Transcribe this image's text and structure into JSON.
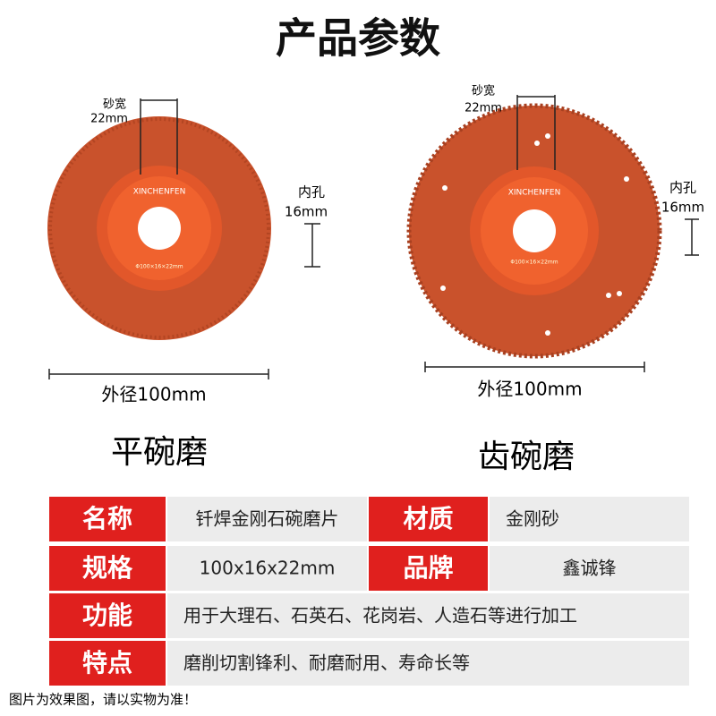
{
  "title": "产品参数",
  "discs": [
    {
      "width_label": "砂宽",
      "width_value": "22mm",
      "hole_label": "内孔",
      "hole_value": "16mm",
      "outer": "外径100mm",
      "name": "平碗磨",
      "brand": "XINCHENFEN",
      "spec": "Φ100×16×22mm"
    },
    {
      "width_label": "砂宽",
      "width_value": "22mm",
      "hole_label": "内孔",
      "hole_value": "16mm",
      "outer": "外径100mm",
      "name": "齿碗磨",
      "brand": "XINCHENFEN",
      "spec": "Φ100×16×22mm"
    }
  ],
  "table": {
    "rows": [
      [
        "名称",
        "钎焊金刚石碗磨片",
        "材质",
        "金刚砂"
      ],
      [
        "规格",
        "100x16x22mm",
        "品牌",
        "鑫诚锋"
      ],
      [
        "功能",
        "用于大理石、石英石、花岗岩、人造石等进行加工"
      ],
      [
        "特点",
        "磨削切割锋利、耐磨耐用、寿命长等"
      ]
    ]
  },
  "footnote": "图片为效果图，请以实物为准！"
}
